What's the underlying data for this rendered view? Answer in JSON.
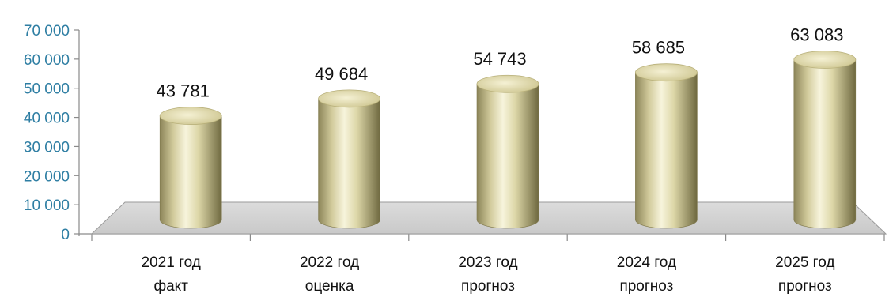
{
  "chart_data": {
    "type": "bar",
    "style": "3d-cylinder",
    "categories": [
      [
        "2021 год",
        "факт"
      ],
      [
        "2022 год",
        "оценка"
      ],
      [
        "2023 год",
        "прогноз"
      ],
      [
        "2024 год",
        "прогноз"
      ],
      [
        "2025 год",
        "прогноз"
      ]
    ],
    "values": [
      43781,
      49684,
      54743,
      58685,
      63083
    ],
    "value_labels": [
      "43 781",
      "49 684",
      "54 743",
      "58 685",
      "63 083"
    ],
    "ylim": [
      0,
      70000
    ],
    "yticks": [
      0,
      10000,
      20000,
      30000,
      40000,
      50000,
      60000,
      70000
    ],
    "ytick_labels": [
      "0",
      "10 000",
      "20 000",
      "30 000",
      "40 000",
      "50 000",
      "60 000",
      "70 000"
    ],
    "title": "",
    "xlabel": "",
    "ylabel": "",
    "grid": false,
    "legend": "none",
    "colors": {
      "bar_light": "#f7f4dc",
      "bar_mid": "#ddd7a8",
      "bar_dark": "#8c8559",
      "floor": "#d6d6d6",
      "tick_text": "#2e7ea3",
      "axis": "#8a8a8a"
    }
  }
}
